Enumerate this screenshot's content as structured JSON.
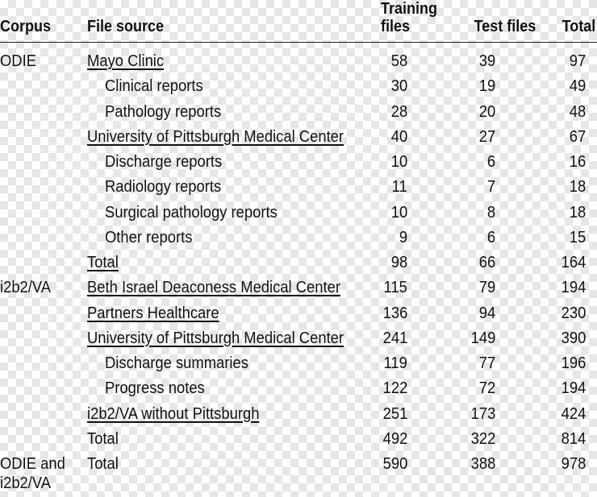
{
  "header": {
    "corpus": "Corpus",
    "file_source": "File source",
    "training_1": "Training",
    "training_2": "files",
    "test": "Test files",
    "total": "Total"
  },
  "rows": [
    {
      "corpus": "ODIE",
      "source": "Mayo Clinic",
      "underline": true,
      "indent": false,
      "training": "58",
      "test": "39",
      "total": "97"
    },
    {
      "corpus": "",
      "source": "Clinical reports",
      "underline": false,
      "indent": true,
      "training": "30",
      "test": "19",
      "total": "49"
    },
    {
      "corpus": "",
      "source": "Pathology reports",
      "underline": false,
      "indent": true,
      "training": "28",
      "test": "20",
      "total": "48"
    },
    {
      "corpus": "",
      "source": "University of Pittsburgh Medical Center",
      "underline": true,
      "indent": false,
      "training": "40",
      "test": "27",
      "total": "67"
    },
    {
      "corpus": "",
      "source": "Discharge reports",
      "underline": false,
      "indent": true,
      "training": "10",
      "test": "6",
      "total": "16"
    },
    {
      "corpus": "",
      "source": "Radiology reports",
      "underline": false,
      "indent": true,
      "training": "11",
      "test": "7",
      "total": "18"
    },
    {
      "corpus": "",
      "source": "Surgical pathology reports",
      "underline": false,
      "indent": true,
      "training": "10",
      "test": "8",
      "total": "18"
    },
    {
      "corpus": "",
      "source": "Other reports",
      "underline": false,
      "indent": true,
      "training": "9",
      "test": "6",
      "total": "15"
    },
    {
      "corpus": "",
      "source": "Total",
      "underline": true,
      "indent": false,
      "training": "98",
      "test": "66",
      "total": "164"
    },
    {
      "corpus": "i2b2/VA",
      "source": "Beth Israel Deaconess Medical Center",
      "underline": true,
      "indent": false,
      "training": "115",
      "test": "79",
      "total": "194"
    },
    {
      "corpus": "",
      "source": "Partners Healthcare",
      "underline": true,
      "indent": false,
      "training": "136",
      "test": "94",
      "total": "230"
    },
    {
      "corpus": "",
      "source": "University of Pittsburgh Medical Center",
      "underline": true,
      "indent": false,
      "training": "241",
      "test": "149",
      "total": "390"
    },
    {
      "corpus": "",
      "source": "Discharge summaries",
      "underline": false,
      "indent": true,
      "training": "119",
      "test": "77",
      "total": "196"
    },
    {
      "corpus": "",
      "source": "Progress notes",
      "underline": false,
      "indent": true,
      "training": "122",
      "test": "72",
      "total": "194"
    },
    {
      "corpus": "",
      "source": "i2b2/VA without Pittsburgh",
      "underline": true,
      "indent": false,
      "training": "251",
      "test": "173",
      "total": "424"
    },
    {
      "corpus": "",
      "source": "Total",
      "underline": false,
      "indent": false,
      "training": "492",
      "test": "322",
      "total": "814"
    },
    {
      "corpus": "ODIE and i2b2/VA",
      "source": "Total",
      "underline": false,
      "indent": false,
      "training": "590",
      "test": "388",
      "total": "978"
    }
  ]
}
